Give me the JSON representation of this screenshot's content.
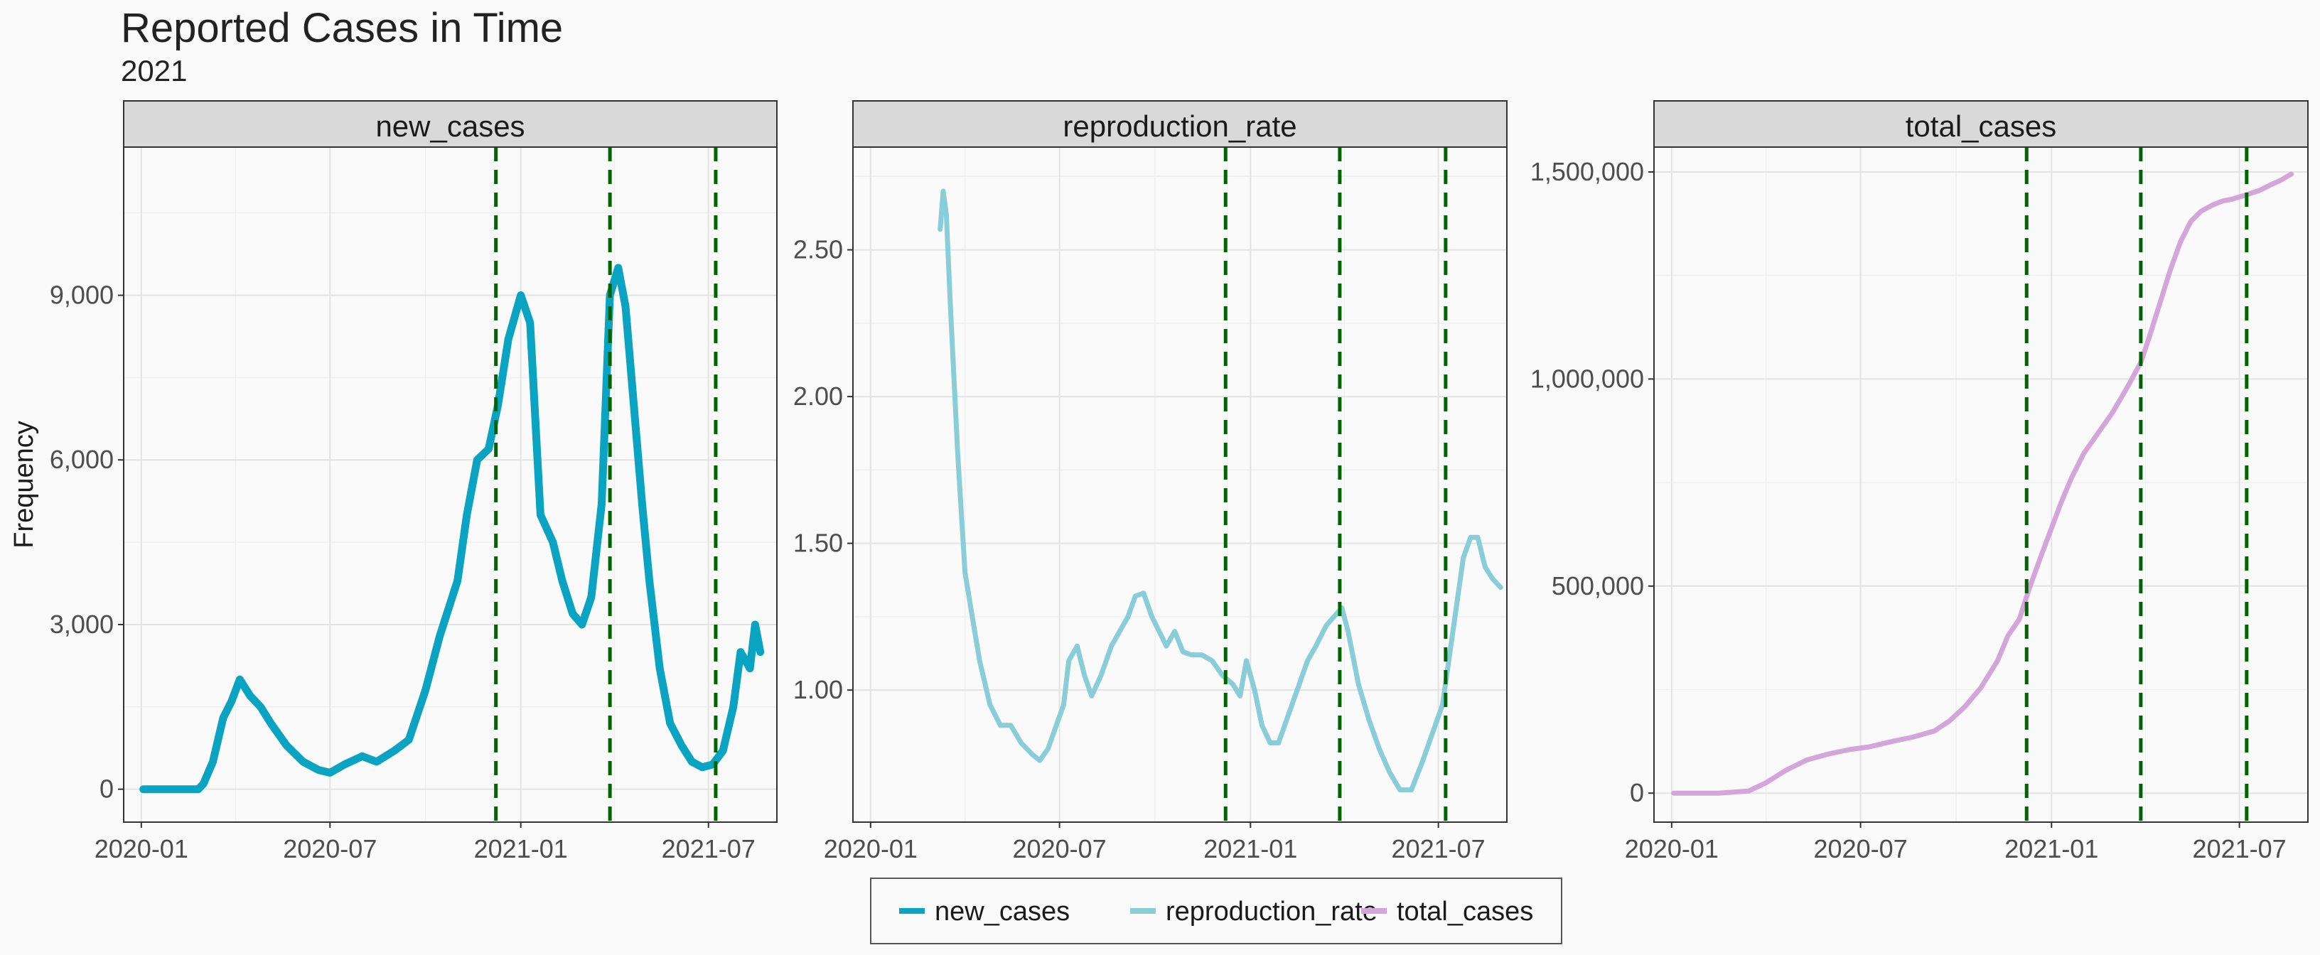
{
  "chart_data": {
    "type": "line",
    "title": "Reported Cases in Time",
    "subtitle": "2021",
    "ylabel": "Frequency",
    "x_ticks": [
      "2020-01",
      "2020-07",
      "2021-01",
      "2021-07"
    ],
    "vlines": [
      "2020-12-08",
      "2021-03-28",
      "2021-07-08"
    ],
    "vline_color": "#006400",
    "legend": {
      "placement": "bottom",
      "entries": [
        {
          "name": "new_cases",
          "color": "#0AA3C2"
        },
        {
          "name": "reproduction_rate",
          "color": "#89CDD9"
        },
        {
          "name": "total_cases",
          "color": "#D4A5DA"
        }
      ]
    },
    "panels": [
      {
        "name": "new_cases",
        "color": "#0AA3C2",
        "ylim": [
          -600,
          11700
        ],
        "y_ticks": [
          0,
          3000,
          6000,
          9000
        ],
        "y_tick_labels": [
          "0",
          "3,000",
          "6,000",
          "9,000"
        ],
        "x": [
          "2020-01-03",
          "2020-02-01",
          "2020-02-25",
          "2020-03-01",
          "2020-03-10",
          "2020-03-20",
          "2020-03-28",
          "2020-04-05",
          "2020-04-15",
          "2020-04-25",
          "2020-05-05",
          "2020-05-20",
          "2020-06-05",
          "2020-06-20",
          "2020-07-01",
          "2020-07-15",
          "2020-08-01",
          "2020-08-15",
          "2020-09-01",
          "2020-09-15",
          "2020-10-01",
          "2020-10-15",
          "2020-11-01",
          "2020-11-10",
          "2020-11-20",
          "2020-12-01",
          "2020-12-10",
          "2020-12-20",
          "2021-01-01",
          "2021-01-10",
          "2021-01-20",
          "2021-02-01",
          "2021-02-10",
          "2021-02-20",
          "2021-03-01",
          "2021-03-10",
          "2021-03-20",
          "2021-03-28",
          "2021-04-05",
          "2021-04-12",
          "2021-04-20",
          "2021-04-28",
          "2021-05-05",
          "2021-05-15",
          "2021-05-25",
          "2021-06-05",
          "2021-06-15",
          "2021-06-25",
          "2021-07-05",
          "2021-07-15",
          "2021-07-25",
          "2021-08-01",
          "2021-08-10",
          "2021-08-15",
          "2021-08-20"
        ],
        "y": [
          0,
          0,
          0,
          100,
          500,
          1300,
          1600,
          2000,
          1700,
          1500,
          1200,
          800,
          500,
          350,
          300,
          450,
          600,
          500,
          700,
          900,
          1800,
          2800,
          3800,
          5000,
          6000,
          6200,
          7000,
          8200,
          9000,
          8500,
          5000,
          4500,
          3800,
          3200,
          3000,
          3500,
          5200,
          9000,
          9500,
          8800,
          7000,
          5200,
          3800,
          2200,
          1200,
          800,
          500,
          400,
          450,
          700,
          1500,
          2500,
          2200,
          3000,
          2500
        ]
      },
      {
        "name": "reproduction_rate",
        "color": "#89CDD9",
        "ylim": [
          0.55,
          2.85
        ],
        "y_ticks": [
          1.0,
          1.5,
          2.0,
          2.5
        ],
        "y_tick_labels": [
          "1.00",
          "1.50",
          "2.00",
          "2.50"
        ],
        "x": [
          "2020-03-08",
          "2020-03-11",
          "2020-03-14",
          "2020-03-18",
          "2020-03-25",
          "2020-04-01",
          "2020-04-08",
          "2020-04-15",
          "2020-04-25",
          "2020-05-05",
          "2020-05-15",
          "2020-05-25",
          "2020-06-05",
          "2020-06-12",
          "2020-06-20",
          "2020-06-28",
          "2020-07-05",
          "2020-07-10",
          "2020-07-18",
          "2020-07-25",
          "2020-08-01",
          "2020-08-10",
          "2020-08-20",
          "2020-08-28",
          "2020-09-05",
          "2020-09-12",
          "2020-09-20",
          "2020-09-28",
          "2020-10-05",
          "2020-10-12",
          "2020-10-20",
          "2020-10-28",
          "2020-11-05",
          "2020-11-15",
          "2020-11-25",
          "2020-12-05",
          "2020-12-15",
          "2020-12-22",
          "2020-12-28",
          "2021-01-05",
          "2021-01-12",
          "2021-01-20",
          "2021-01-28",
          "2021-02-05",
          "2021-02-15",
          "2021-02-25",
          "2021-03-05",
          "2021-03-15",
          "2021-03-25",
          "2021-03-30",
          "2021-04-05",
          "2021-04-15",
          "2021-04-25",
          "2021-05-05",
          "2021-05-15",
          "2021-05-25",
          "2021-06-05",
          "2021-06-15",
          "2021-06-25",
          "2021-07-05",
          "2021-07-15",
          "2021-07-25",
          "2021-08-01",
          "2021-08-08",
          "2021-08-15",
          "2021-08-22",
          "2021-08-30"
        ],
        "y": [
          2.57,
          2.7,
          2.62,
          2.3,
          1.8,
          1.4,
          1.25,
          1.1,
          0.95,
          0.88,
          0.88,
          0.82,
          0.78,
          0.76,
          0.8,
          0.88,
          0.95,
          1.1,
          1.15,
          1.05,
          0.98,
          1.05,
          1.15,
          1.2,
          1.25,
          1.32,
          1.33,
          1.25,
          1.2,
          1.15,
          1.2,
          1.13,
          1.12,
          1.12,
          1.1,
          1.05,
          1.02,
          0.98,
          1.1,
          1.0,
          0.88,
          0.82,
          0.82,
          0.9,
          1.0,
          1.1,
          1.15,
          1.22,
          1.26,
          1.28,
          1.2,
          1.02,
          0.9,
          0.8,
          0.72,
          0.66,
          0.66,
          0.75,
          0.85,
          0.95,
          1.2,
          1.45,
          1.52,
          1.52,
          1.42,
          1.38,
          1.35
        ]
      },
      {
        "name": "total_cases",
        "color": "#D4A5DA",
        "ylim": [
          -70000,
          1560000
        ],
        "y_ticks": [
          0,
          500000,
          1000000,
          1500000
        ],
        "y_tick_labels": [
          "0",
          "500,000",
          "1,000,000",
          "1,500,000"
        ],
        "x": [
          "2020-01-03",
          "2020-02-15",
          "2020-03-15",
          "2020-04-01",
          "2020-04-20",
          "2020-05-10",
          "2020-06-01",
          "2020-06-20",
          "2020-07-10",
          "2020-08-01",
          "2020-08-20",
          "2020-09-10",
          "2020-09-25",
          "2020-10-10",
          "2020-10-25",
          "2020-11-10",
          "2020-11-20",
          "2020-12-01",
          "2020-12-10",
          "2020-12-20",
          "2021-01-01",
          "2021-01-10",
          "2021-01-20",
          "2021-02-01",
          "2021-02-15",
          "2021-03-01",
          "2021-03-15",
          "2021-03-28",
          "2021-04-05",
          "2021-04-15",
          "2021-04-25",
          "2021-05-05",
          "2021-05-15",
          "2021-05-25",
          "2021-06-05",
          "2021-06-15",
          "2021-06-25",
          "2021-07-08",
          "2021-07-20",
          "2021-08-01",
          "2021-08-10",
          "2021-08-20"
        ],
        "y": [
          0,
          0,
          5000,
          25000,
          55000,
          80000,
          95000,
          105000,
          112000,
          125000,
          135000,
          150000,
          175000,
          210000,
          255000,
          320000,
          380000,
          420000,
          490000,
          560000,
          640000,
          700000,
          760000,
          820000,
          870000,
          920000,
          980000,
          1040000,
          1100000,
          1180000,
          1260000,
          1330000,
          1380000,
          1405000,
          1420000,
          1430000,
          1435000,
          1445000,
          1455000,
          1470000,
          1480000,
          1495000
        ]
      }
    ]
  }
}
